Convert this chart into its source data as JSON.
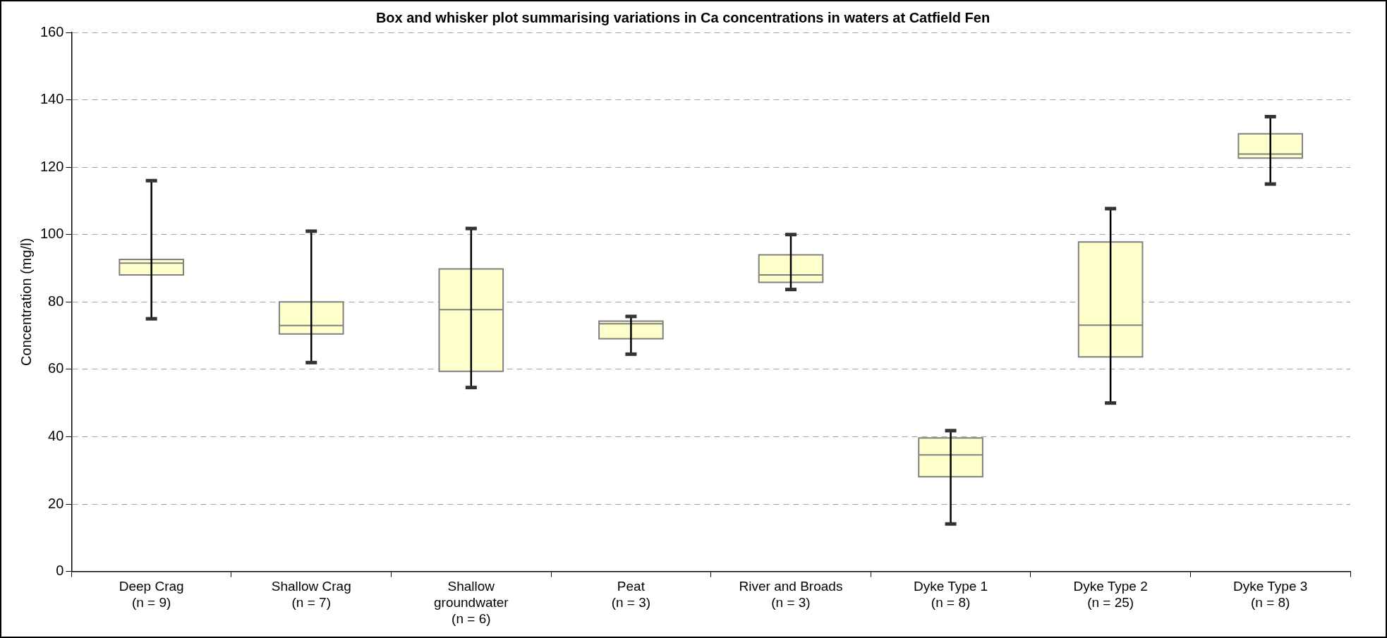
{
  "chart_data": {
    "type": "box",
    "title": "Box and whisker plot summarising variations in Ca concentrations in waters at Catfield Fen",
    "ylabel": "Concentration (mg/l)",
    "categories": [
      "Deep Crag\n(n = 9)",
      "Shallow Crag\n(n = 7)",
      "Shallow\ngroundwater\n(n = 6)",
      "Peat\n(n = 3)",
      "River and Broads\n(n = 3)",
      "Dyke Type 1\n(n = 8)",
      "Dyke Type 2\n(n = 25)",
      "Dyke Type 3\n(n = 8)"
    ],
    "color": "#ffffcc",
    "boxes": [
      {
        "low": 75,
        "q1": 88,
        "median": 91.5,
        "q3": 92.6,
        "high": 116
      },
      {
        "low": 62,
        "q1": 70.5,
        "median": 73,
        "q3": 80,
        "high": 101
      },
      {
        "low": 54.6,
        "q1": 59.4,
        "median": 77.7,
        "q3": 89.8,
        "high": 101.8
      },
      {
        "low": 64.5,
        "q1": 69.1,
        "median": 73.5,
        "q3": 74.3,
        "high": 75.7
      },
      {
        "low": 83.7,
        "q1": 85.8,
        "median": 88,
        "q3": 94,
        "high": 100
      },
      {
        "low": 14.1,
        "q1": 28.1,
        "median": 34.6,
        "q3": 39.6,
        "high": 41.8
      },
      {
        "low": 50,
        "q1": 63.7,
        "median": 73.1,
        "q3": 97.8,
        "high": 107.7
      },
      {
        "low": 115,
        "q1": 122.7,
        "median": 123.9,
        "q3": 129.9,
        "high": 135
      }
    ],
    "ylim": [
      0,
      160
    ],
    "yticks": [
      0,
      20,
      40,
      60,
      80,
      100,
      120,
      140,
      160
    ],
    "grid": "y",
    "legend": false
  }
}
